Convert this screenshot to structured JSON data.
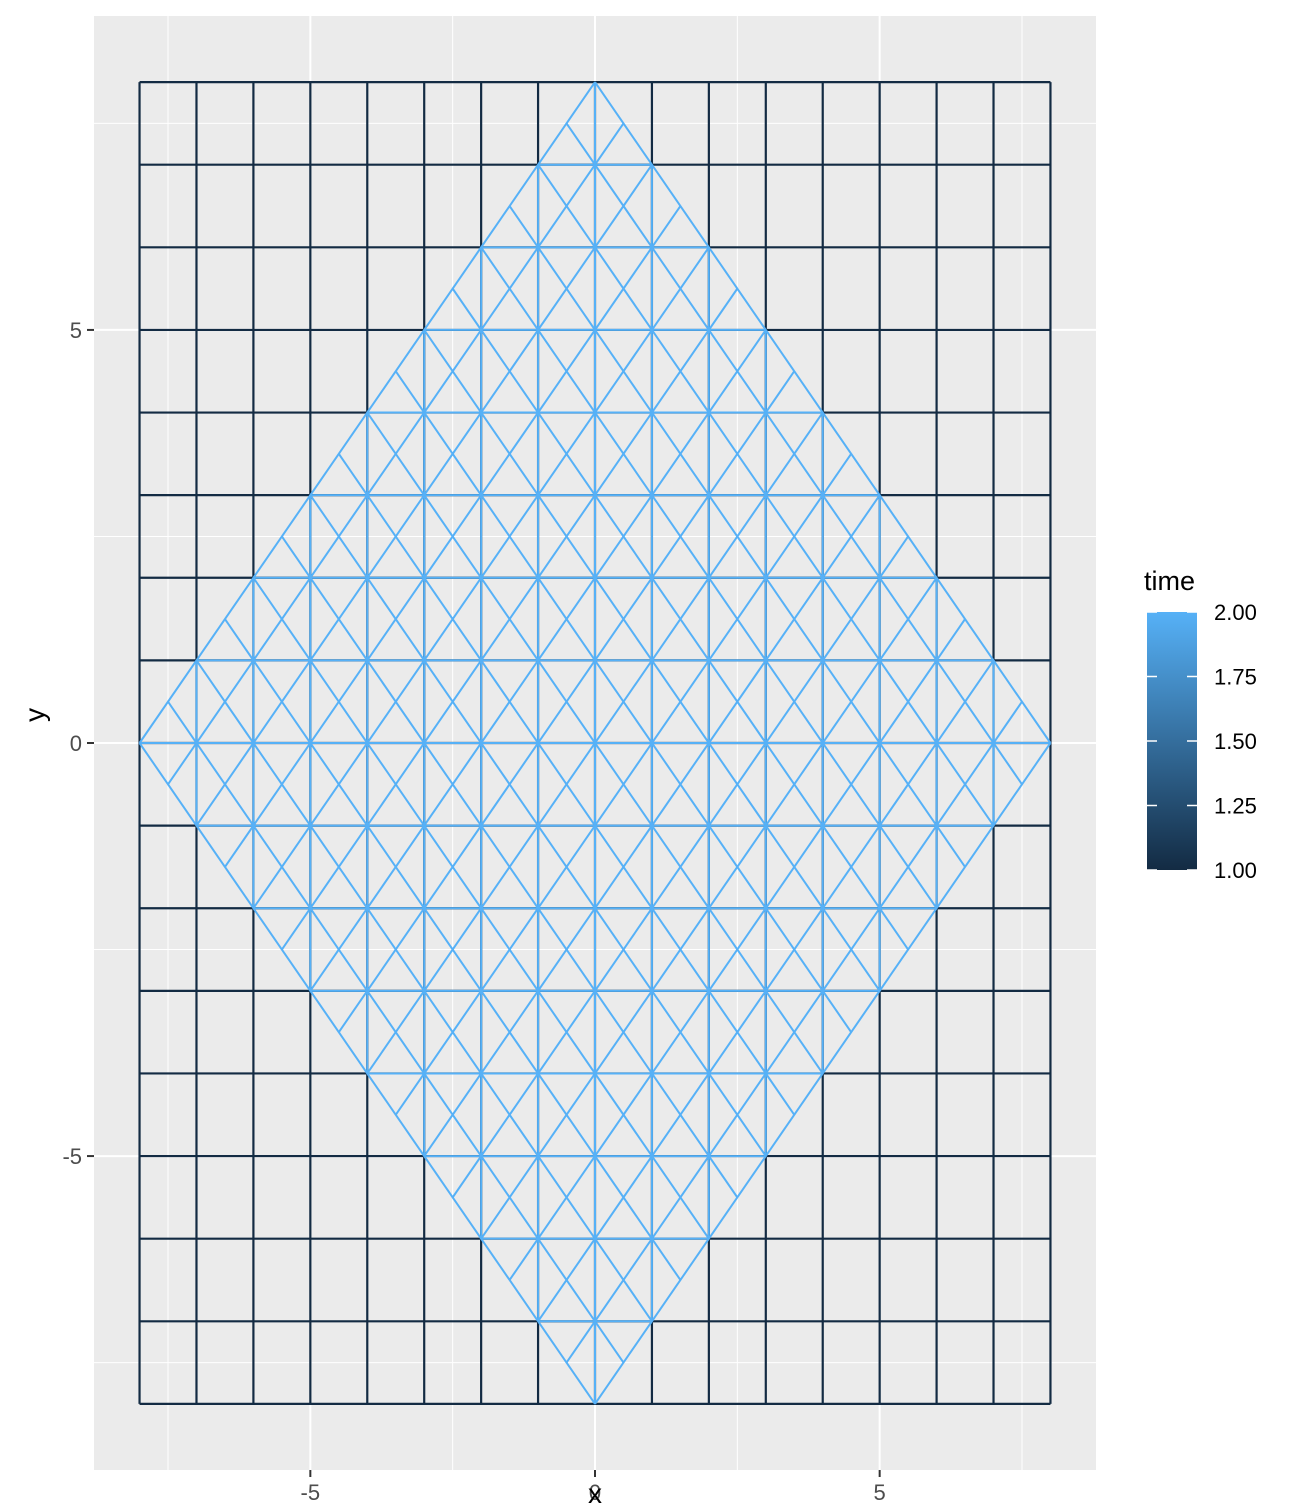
{
  "chart_data": {
    "type": "line",
    "title": "",
    "xlabel": "x",
    "ylabel": "y",
    "xlim": [
      -8.8,
      8.8
    ],
    "ylim": [
      -8.8,
      8.8
    ],
    "x_ticks": [
      -5,
      0,
      5
    ],
    "y_ticks": [
      -5,
      0,
      5
    ],
    "x_tick_labels": [
      "-5",
      "0",
      "5"
    ],
    "y_tick_labels": [
      "-5",
      "0",
      "5"
    ],
    "grid": true,
    "background_color": "#EBEBEB",
    "grid_color": "#FFFFFF",
    "series": [
      {
        "time": 1.0,
        "color": "#132B43",
        "description_kind": "rectangular grid",
        "x_values": [
          -8,
          -7,
          -6,
          -5,
          -4,
          -3,
          -2,
          -1,
          0,
          1,
          2,
          3,
          4,
          5,
          6,
          7,
          8
        ],
        "y_values": [
          -8,
          -7,
          -6,
          -5,
          -4,
          -3,
          -2,
          -1,
          0,
          1,
          2,
          3,
          4,
          5,
          6,
          7,
          8
        ],
        "x_range": [
          -8,
          8
        ],
        "y_range": [
          -8,
          8
        ]
      },
      {
        "time": 2.0,
        "color": "#56B1F7",
        "description_kind": "rotated grid (diamond)",
        "diamond_half_width": 8,
        "lines_u_minus_v": [
          -8,
          -7,
          -6,
          -5,
          -4,
          -3,
          -2,
          -1,
          0,
          1,
          2,
          3,
          4,
          5,
          6,
          7,
          8
        ],
        "lines_u_plus_v": [
          -8,
          -7,
          -6,
          -5,
          -4,
          -3,
          -2,
          -1,
          0,
          1,
          2,
          3,
          4,
          5,
          6,
          7,
          8
        ],
        "vertical_x_values": [
          -7,
          -6,
          -5,
          -4,
          -3,
          -2,
          -1,
          0,
          1,
          2,
          3,
          4,
          5,
          6,
          7
        ],
        "horizontal_y_values": [
          -7,
          -6,
          -5,
          -4,
          -3,
          -2,
          -1,
          0,
          1,
          2,
          3,
          4,
          5,
          6,
          7
        ]
      }
    ],
    "legend": {
      "title": "time",
      "type": "colorbar",
      "position": "right",
      "low_color": "#132B43",
      "high_color": "#56B1F7",
      "range": [
        1.0,
        2.0
      ],
      "breaks": [
        1.0,
        1.25,
        1.5,
        1.75,
        2.0
      ],
      "labels": [
        "1.00",
        "1.25",
        "1.50",
        "1.75",
        "2.00"
      ]
    }
  }
}
